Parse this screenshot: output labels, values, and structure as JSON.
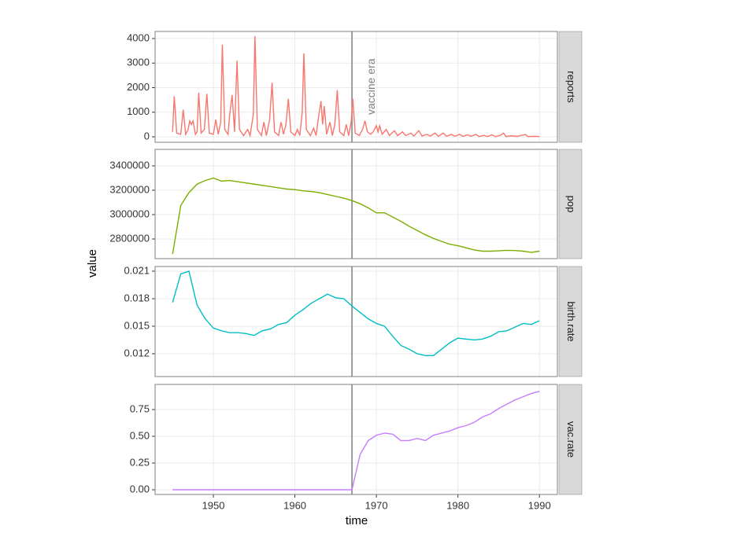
{
  "xlabel": "time",
  "ylabel": "value",
  "vline": {
    "x": 1967,
    "label": "vaccine era"
  },
  "chart_data": [
    {
      "type": "line",
      "title": "reports",
      "color": "#F8766D",
      "grid": true,
      "xlim": [
        1942.85,
        1992.2
      ],
      "xticks": [
        1950,
        1960,
        1970,
        1980,
        1990
      ],
      "ylim": [
        -224,
        4288
      ],
      "yticks": [
        0,
        1000,
        2000,
        3000,
        4000
      ],
      "x": [
        1945.0,
        1945.2,
        1945.5,
        1946.0,
        1946.3,
        1946.6,
        1946.9,
        1947.1,
        1947.3,
        1947.5,
        1947.8,
        1948.0,
        1948.2,
        1948.5,
        1948.9,
        1949.2,
        1949.5,
        1950.0,
        1950.3,
        1950.6,
        1950.9,
        1951.1,
        1951.4,
        1951.8,
        1952.0,
        1952.3,
        1952.6,
        1952.9,
        1953.2,
        1953.7,
        1954.2,
        1954.5,
        1954.9,
        1955.1,
        1955.4,
        1955.9,
        1956.2,
        1956.5,
        1956.9,
        1957.2,
        1957.5,
        1958.0,
        1958.3,
        1958.6,
        1958.9,
        1959.2,
        1959.5,
        1960.0,
        1960.3,
        1960.6,
        1960.9,
        1961.1,
        1961.4,
        1961.9,
        1962.3,
        1962.6,
        1962.9,
        1963.2,
        1963.4,
        1963.6,
        1963.9,
        1964.3,
        1964.6,
        1964.9,
        1965.2,
        1965.5,
        1966.0,
        1966.3,
        1966.6,
        1966.9,
        1967.1,
        1967.4,
        1967.9,
        1968.3,
        1968.6,
        1968.9,
        1969.3,
        1969.6,
        1970.0,
        1970.2,
        1970.4,
        1970.7,
        1971.2,
        1971.6,
        1972.2,
        1972.6,
        1973.2,
        1973.6,
        1974.2,
        1974.6,
        1975.2,
        1975.6,
        1976.2,
        1976.6,
        1977.2,
        1977.6,
        1978.2,
        1978.6,
        1979.2,
        1979.6,
        1980.2,
        1980.6,
        1981.2,
        1981.6,
        1982.2,
        1982.6,
        1983.2,
        1983.6,
        1984.2,
        1984.6,
        1985.2,
        1985.6,
        1985.9,
        1986.5,
        1987.2,
        1988.3,
        1988.6,
        1989.5,
        1990.0
      ],
      "values": [
        200,
        1650,
        150,
        100,
        1100,
        100,
        300,
        650,
        500,
        650,
        100,
        200,
        1800,
        150,
        300,
        1750,
        150,
        100,
        700,
        100,
        600,
        3750,
        300,
        100,
        900,
        1700,
        200,
        3100,
        300,
        50,
        300,
        50,
        900,
        4100,
        300,
        50,
        600,
        50,
        700,
        2200,
        200,
        50,
        600,
        100,
        500,
        1550,
        200,
        50,
        300,
        50,
        1000,
        3400,
        300,
        50,
        350,
        50,
        800,
        1450,
        500,
        1250,
        100,
        600,
        50,
        500,
        1900,
        200,
        50,
        500,
        50,
        600,
        1550,
        150,
        50,
        300,
        650,
        200,
        100,
        200,
        450,
        200,
        450,
        100,
        300,
        50,
        250,
        50,
        200,
        50,
        150,
        30,
        250,
        30,
        100,
        30,
        150,
        20,
        150,
        20,
        100,
        20,
        100,
        20,
        80,
        20,
        100,
        10,
        60,
        10,
        80,
        10,
        60,
        150,
        10,
        40,
        20,
        90,
        10,
        20,
        10
      ]
    },
    {
      "type": "line",
      "title": "pop",
      "color": "#7CAE00",
      "grid": true,
      "xlim": [
        1942.85,
        1992.2
      ],
      "xticks": [
        1950,
        1960,
        1970,
        1980,
        1990
      ],
      "ylim": [
        2638700,
        3535500
      ],
      "yticks": [
        2800000,
        3000000,
        3200000,
        3400000
      ],
      "x": [
        1945,
        1946,
        1947,
        1948,
        1949,
        1950,
        1951,
        1952,
        1953,
        1954,
        1955,
        1956,
        1957,
        1958,
        1959,
        1960,
        1961,
        1962,
        1963,
        1964,
        1965,
        1966,
        1967,
        1968,
        1969,
        1970,
        1971,
        1972,
        1973,
        1974,
        1975,
        1976,
        1977,
        1978,
        1979,
        1980,
        1981,
        1982,
        1983,
        1984,
        1985,
        1986,
        1987,
        1988,
        1989,
        1990
      ],
      "values": [
        2677000,
        3075000,
        3180000,
        3250000,
        3280000,
        3300000,
        3275000,
        3280000,
        3270000,
        3260000,
        3250000,
        3240000,
        3230000,
        3220000,
        3210000,
        3205000,
        3195000,
        3190000,
        3180000,
        3165000,
        3150000,
        3135000,
        3115000,
        3090000,
        3055000,
        3015000,
        3015000,
        2980000,
        2945000,
        2905000,
        2870000,
        2835000,
        2805000,
        2780000,
        2757000,
        2745000,
        2728000,
        2710000,
        2700000,
        2700000,
        2703000,
        2707000,
        2705000,
        2700000,
        2690000,
        2700000
      ]
    },
    {
      "type": "line",
      "title": "birth.rate",
      "color": "#00BFC4",
      "grid": true,
      "xlim": [
        1942.85,
        1992.2
      ],
      "xticks": [
        1950,
        1960,
        1970,
        1980,
        1990
      ],
      "ylim": [
        0.009514,
        0.02151
      ],
      "yticks": [
        0.012,
        0.015,
        0.018,
        0.021
      ],
      "x": [
        1945,
        1946,
        1947,
        1948,
        1949,
        1950,
        1951,
        1952,
        1953,
        1954,
        1955,
        1956,
        1957,
        1958,
        1959,
        1960,
        1961,
        1962,
        1963,
        1964,
        1965,
        1966,
        1967,
        1968,
        1969,
        1970,
        1971,
        1972,
        1973,
        1974,
        1975,
        1976,
        1977,
        1978,
        1979,
        1980,
        1981,
        1982,
        1983,
        1984,
        1985,
        1986,
        1987,
        1988,
        1989,
        1990
      ],
      "values": [
        0.0176,
        0.0207,
        0.021,
        0.0173,
        0.0158,
        0.0148,
        0.0145,
        0.0143,
        0.0143,
        0.0142,
        0.014,
        0.0145,
        0.0147,
        0.0152,
        0.0154,
        0.0162,
        0.0168,
        0.0175,
        0.018,
        0.0185,
        0.0181,
        0.018,
        0.0172,
        0.0165,
        0.0158,
        0.0153,
        0.015,
        0.0139,
        0.0129,
        0.0125,
        0.012,
        0.0118,
        0.0118,
        0.0125,
        0.0132,
        0.0137,
        0.0136,
        0.0135,
        0.0136,
        0.0139,
        0.0144,
        0.0145,
        0.0149,
        0.0153,
        0.0152,
        0.0156
      ]
    },
    {
      "type": "line",
      "title": "vac.rate",
      "color": "#C77CFF",
      "grid": true,
      "xlim": [
        1942.85,
        1992.2
      ],
      "xticks": [
        1950,
        1960,
        1970,
        1980,
        1990
      ],
      "ylim": [
        -0.044,
        0.985
      ],
      "yticks": [
        {
          "value": 0,
          "label": "0.00"
        },
        {
          "value": 0.25,
          "label": "0.25"
        },
        {
          "value": 0.5,
          "label": "0.50"
        },
        0.75
      ],
      "x": [
        1945,
        1946,
        1947,
        1948,
        1949,
        1950,
        1951,
        1952,
        1953,
        1954,
        1955,
        1956,
        1957,
        1958,
        1959,
        1960,
        1961,
        1962,
        1963,
        1964,
        1965,
        1966,
        1967,
        1968,
        1969,
        1970,
        1971,
        1972,
        1973,
        1974,
        1975,
        1976,
        1977,
        1978,
        1979,
        1980,
        1981,
        1982,
        1983,
        1984,
        1985,
        1986,
        1987,
        1988,
        1989,
        1990
      ],
      "values": [
        0,
        0,
        0,
        0,
        0,
        0,
        0,
        0,
        0,
        0,
        0,
        0,
        0,
        0,
        0,
        0,
        0,
        0,
        0,
        0,
        0,
        0,
        0,
        0.33,
        0.46,
        0.51,
        0.53,
        0.52,
        0.46,
        0.46,
        0.48,
        0.46,
        0.51,
        0.53,
        0.55,
        0.58,
        0.6,
        0.63,
        0.68,
        0.71,
        0.76,
        0.8,
        0.84,
        0.87,
        0.9,
        0.92
      ]
    }
  ]
}
